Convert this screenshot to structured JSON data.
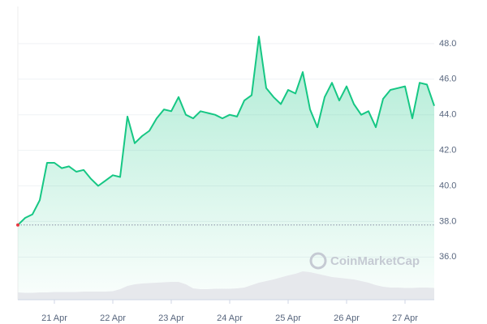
{
  "chart_data": {
    "type": "line",
    "categories": [
      null,
      null,
      null,
      null,
      null,
      "21 Apr",
      null,
      null,
      null,
      null,
      null,
      null,
      null,
      "22 Apr",
      null,
      null,
      null,
      null,
      null,
      null,
      null,
      "23 Apr",
      null,
      null,
      null,
      null,
      null,
      null,
      null,
      "24 Apr",
      null,
      null,
      null,
      null,
      null,
      null,
      null,
      "25 Apr",
      null,
      null,
      null,
      null,
      null,
      null,
      null,
      "26 Apr",
      null,
      null,
      null,
      null,
      null,
      null,
      null,
      "27 Apr",
      null,
      null,
      null,
      null
    ],
    "series": [
      {
        "color": "#16c784",
        "values": [
          37.8,
          38.2,
          38.4,
          39.2,
          41.3,
          41.3,
          41.0,
          41.1,
          40.8,
          40.9,
          40.4,
          40.0,
          40.3,
          40.6,
          40.5,
          43.9,
          42.4,
          42.8,
          43.1,
          43.8,
          44.3,
          44.2,
          45.0,
          44.0,
          43.8,
          44.2,
          44.1,
          44.0,
          43.8,
          44.0,
          43.9,
          44.8,
          45.1,
          48.4,
          45.5,
          45.0,
          44.6,
          45.4,
          45.2,
          46.4,
          44.3,
          43.3,
          45.0,
          45.8,
          44.8,
          45.6,
          44.6,
          44.0,
          44.2,
          43.3,
          44.9,
          45.4,
          45.5,
          45.6,
          43.8,
          45.8,
          45.7,
          44.5
        ]
      }
    ],
    "volume": {
      "color": "#e6e8ec",
      "vlim": [
        0,
        100
      ],
      "values": [
        18,
        17,
        17,
        18,
        18,
        19,
        19,
        19,
        19,
        20,
        20,
        20,
        20,
        21,
        26,
        34,
        38,
        40,
        41,
        42,
        43,
        44,
        44,
        38,
        28,
        26,
        26,
        27,
        27,
        27,
        28,
        30,
        36,
        42,
        46,
        50,
        55,
        60,
        64,
        70,
        68,
        64,
        60,
        56,
        54,
        52,
        50,
        46,
        42,
        36,
        32,
        30,
        30,
        29,
        29,
        30,
        30,
        29
      ]
    },
    "reference_value": 37.8,
    "ylim": [
      33.6,
      50.0
    ],
    "yticks": [
      {
        "value": 36,
        "label": "36.0"
      },
      {
        "value": 38,
        "label": "38.0"
      },
      {
        "value": 40,
        "label": "40.0"
      },
      {
        "value": 42,
        "label": "42.0"
      },
      {
        "value": 44,
        "label": "44.0"
      },
      {
        "value": 46,
        "label": "46.0"
      },
      {
        "value": 48,
        "label": "48.0"
      }
    ],
    "grid": true,
    "watermark": "CoinMarketCap"
  }
}
